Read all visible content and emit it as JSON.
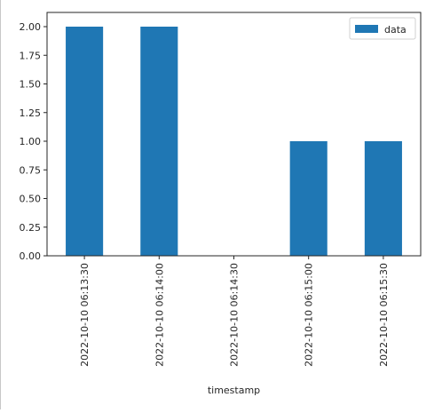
{
  "chart_data": {
    "type": "bar",
    "categories": [
      "2022-10-10 06:13:30",
      "2022-10-10 06:14:00",
      "2022-10-10 06:14:30",
      "2022-10-10 06:15:00",
      "2022-10-10 06:15:30"
    ],
    "series": [
      {
        "name": "data",
        "values": [
          2,
          2,
          0,
          1,
          1
        ]
      }
    ],
    "xlabel": "timestamp",
    "ylabel": "",
    "ylim": [
      0,
      2.0
    ],
    "yticks": [
      "0.00",
      "0.25",
      "0.50",
      "0.75",
      "1.00",
      "1.25",
      "1.50",
      "1.75",
      "2.00"
    ],
    "legend_position": "top-right",
    "grid": false,
    "colors": {
      "bar": "#1f77b4",
      "axes": "#262626"
    }
  }
}
